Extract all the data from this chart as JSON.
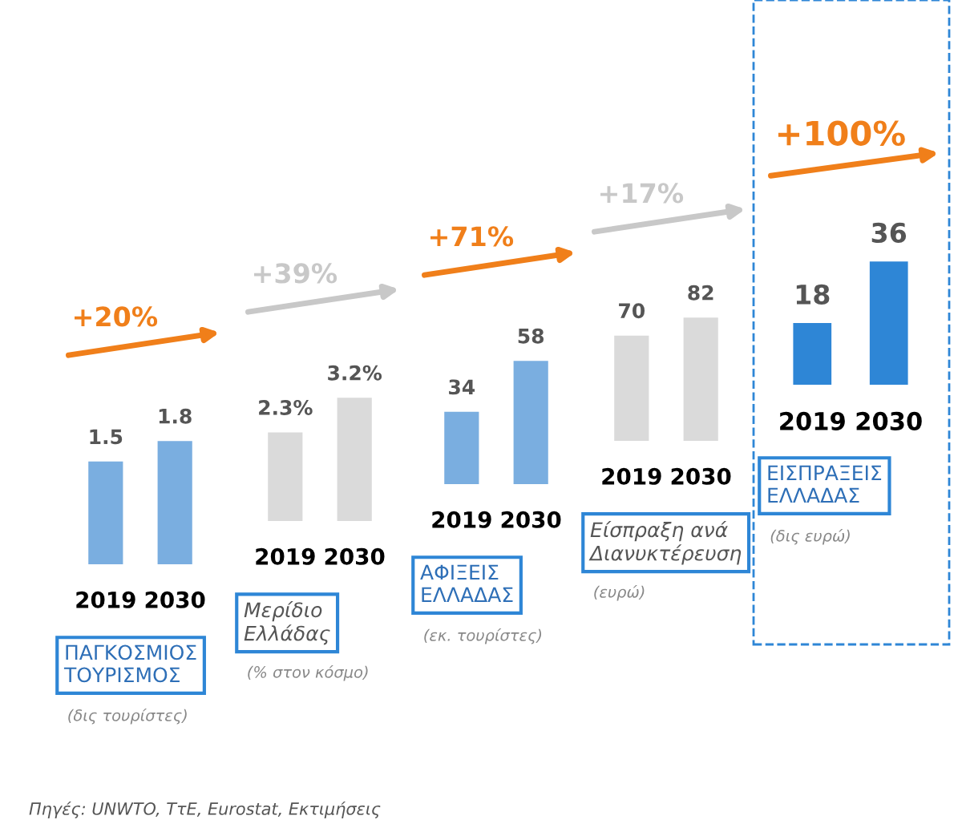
{
  "chart_data": [
    {
      "type": "bar",
      "title": "ΠΑΓΚΟΣΜΙΟΣ\nΤΟΥΡΙΣΜΟΣ",
      "subtitle": "(δις τουρίστες)",
      "categories": [
        "2019",
        "2030"
      ],
      "values": [
        1.5,
        1.8
      ],
      "colors": [
        "#7aaee0",
        "#7aaee0"
      ],
      "data_labels": true,
      "tick_labels": "x",
      "annotations": [
        "+20%",
        "Πηγές: UNWTO, ΤτΕ, Eurostat, Εκτιμήσεις"
      ]
    },
    {
      "type": "bar",
      "title": "Μερίδιο\nΕλλάδας",
      "subtitle": "(% στον κόσμο)",
      "categories": [
        "2019",
        "2030"
      ],
      "values": [
        2.3,
        3.2
      ],
      "value_labels": [
        "2.3%",
        "3.2%"
      ],
      "colors": [
        "#dadada",
        "#dadada"
      ],
      "tick_labels": "x",
      "annotations": [
        "+39%"
      ]
    },
    {
      "type": "bar",
      "title": "ΑΦΙΞΕΙΣ\nΕΛΛΑΔΑΣ",
      "subtitle": "(εκ. τουρίστες)",
      "categories": [
        "2019",
        "2030"
      ],
      "values": [
        34,
        58
      ],
      "colors": [
        "#7aaee0",
        "#7aaee0"
      ],
      "data_labels": true,
      "tick_labels": "x",
      "annotations": [
        "+71%"
      ]
    },
    {
      "type": "bar",
      "title": "Είσπραξη ανά\nΔιανυκτέρευση",
      "subtitle": "(ευρώ)",
      "categories": [
        "2019",
        "2030"
      ],
      "values": [
        70,
        82
      ],
      "colors": [
        "#dadada",
        "#dadada"
      ],
      "data_labels": true,
      "tick_labels": "x",
      "annotations": [
        "+17%"
      ]
    },
    {
      "type": "bar",
      "title": "ΕΙΣΠΡΑΞΕΙΣ\nΕΛΛΑΔΑΣ",
      "subtitle": "(δις ευρώ)",
      "categories": [
        "2019",
        "2030"
      ],
      "values": [
        18,
        36
      ],
      "colors": [
        "#2e86d6",
        "#2e86d6"
      ],
      "data_labels": true,
      "tick_labels": "x",
      "annotations": [
        "+100%"
      ]
    }
  ]
}
